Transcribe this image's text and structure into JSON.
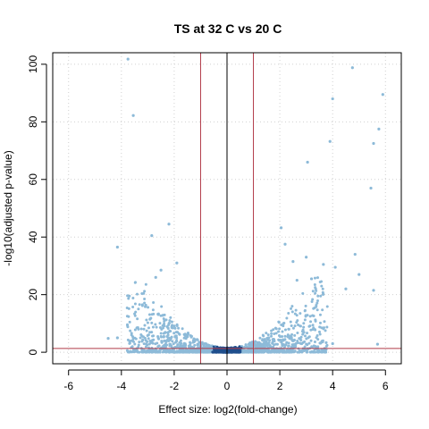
{
  "chart_data": {
    "type": "scatter",
    "title": "TS at 32 C vs 20 C",
    "xlabel": "Effect size: log2(fold-change)",
    "ylabel": "-log10(adjusted p-value)",
    "xlim": [
      -6.6,
      6.6
    ],
    "ylim": [
      -4,
      104
    ],
    "xticks": [
      -6,
      -4,
      -2,
      0,
      2,
      4,
      6
    ],
    "yticks": [
      0,
      20,
      40,
      60,
      80,
      100
    ],
    "grid": true,
    "legend": "none",
    "colors": {
      "points": "#8dbad8",
      "dense_center": "#1f4e8c",
      "threshold_lines": "#b03a48",
      "zero_line": "#000000",
      "grid": "#d0d0d0"
    },
    "thresholds": {
      "log2fc": [
        -1,
        1
      ],
      "neg_log10_padj": 1.3,
      "zero_line_x": 0
    },
    "highlighted_points": [
      {
        "x": -3.75,
        "y": 101.8
      },
      {
        "x": -3.55,
        "y": 82.2
      },
      {
        "x": -4.15,
        "y": 36.5
      },
      {
        "x": -2.85,
        "y": 40.5
      },
      {
        "x": -2.2,
        "y": 44.5
      },
      {
        "x": -1.9,
        "y": 31.0
      },
      {
        "x": -2.5,
        "y": 28.5
      },
      {
        "x": -2.7,
        "y": 26.0
      },
      {
        "x": -3.7,
        "y": 19.5
      },
      {
        "x": -4.5,
        "y": 4.8
      },
      {
        "x": -4.15,
        "y": 5.0
      },
      {
        "x": 4.75,
        "y": 98.8
      },
      {
        "x": 5.9,
        "y": 89.5
      },
      {
        "x": 4.0,
        "y": 88.0
      },
      {
        "x": 5.75,
        "y": 77.5
      },
      {
        "x": 3.9,
        "y": 73.2
      },
      {
        "x": 5.55,
        "y": 72.5
      },
      {
        "x": 3.05,
        "y": 66.0
      },
      {
        "x": 5.45,
        "y": 57.0
      },
      {
        "x": 2.05,
        "y": 43.2
      },
      {
        "x": 2.2,
        "y": 37.5
      },
      {
        "x": 3.0,
        "y": 33.0
      },
      {
        "x": 2.5,
        "y": 31.5
      },
      {
        "x": 4.85,
        "y": 34.0
      },
      {
        "x": 3.65,
        "y": 30.5
      },
      {
        "x": 4.1,
        "y": 29.5
      },
      {
        "x": 5.0,
        "y": 27.0
      },
      {
        "x": 5.55,
        "y": 21.5
      },
      {
        "x": 3.2,
        "y": 25.5
      },
      {
        "x": 4.5,
        "y": 22.0
      },
      {
        "x": 2.65,
        "y": 25.0
      },
      {
        "x": 5.7,
        "y": 2.8
      },
      {
        "x": 4.0,
        "y": 3.0
      }
    ]
  }
}
